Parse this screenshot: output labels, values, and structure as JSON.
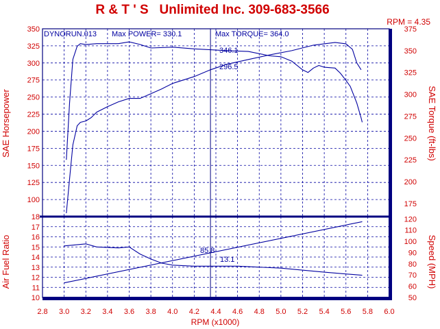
{
  "header": {
    "title": "R & T ' S   Unlimited Inc. 309-683-3566",
    "rpm_readout": "RPM = 4.35"
  },
  "upper_panel": {
    "run_label": "DYNORUN.013",
    "max_power_label": "Max POWER= 330.1",
    "max_torque_label": "Max TORQUE= 364.0",
    "cursor_hp_value": "296.5",
    "cursor_torque_value": "346.1",
    "left_axis_label": "SAE Horsepower",
    "right_axis_label": "SAE Torque (ft-lbs)"
  },
  "lower_panel": {
    "cursor_speed_value": "85.8",
    "cursor_afr_value": "13.1",
    "left_axis_label": "Air Fuel Ratio",
    "right_axis_label": "Speed (MPH)"
  },
  "x_axis": {
    "label": "RPM (x1000)",
    "ticks": [
      "2.8",
      "3.0",
      "3.2",
      "3.4",
      "3.6",
      "3.8",
      "4.0",
      "4.2",
      "4.4",
      "4.6",
      "4.8",
      "5.0",
      "5.2",
      "5.4",
      "5.6",
      "5.8",
      "6.0"
    ],
    "range": [
      2.8,
      6.0
    ],
    "cursor_rpm": 4.35
  },
  "colors": {
    "title": "#d00000",
    "axis_text": "#d00000",
    "curves": "#0000a0",
    "grid": "#0000a0",
    "frame": "#000080"
  },
  "chart_data": [
    {
      "type": "line",
      "panel": "upper",
      "grid": true,
      "left_axis": {
        "title": "SAE Horsepower",
        "ticks": [
          "100",
          "125",
          "150",
          "175",
          "200",
          "225",
          "250",
          "275",
          "300",
          "325",
          "350"
        ],
        "range": [
          75,
          350
        ]
      },
      "right_axis": {
        "title": "SAE Torque (ft-lbs)",
        "ticks": [
          "175",
          "200",
          "225",
          "250",
          "275",
          "300",
          "325",
          "350",
          "375"
        ],
        "range": [
          160,
          375
        ]
      },
      "series": [
        {
          "axis": "left",
          "points": [
            [
              3.02,
              80
            ],
            [
              3.05,
              130
            ],
            [
              3.08,
              180
            ],
            [
              3.12,
              208
            ],
            [
              3.15,
              213
            ],
            [
              3.2,
              215
            ],
            [
              3.25,
              220
            ],
            [
              3.3,
              228
            ],
            [
              3.4,
              236
            ],
            [
              3.5,
              243
            ],
            [
              3.6,
              248
            ],
            [
              3.7,
              248
            ],
            [
              3.8,
              255
            ],
            [
              3.9,
              262
            ],
            [
              4.0,
              270
            ],
            [
              4.2,
              280
            ],
            [
              4.35,
              290
            ],
            [
              4.5,
              298
            ],
            [
              4.7,
              305
            ],
            [
              4.9,
              312
            ],
            [
              5.1,
              318
            ],
            [
              5.2,
              322
            ],
            [
              5.3,
              326
            ],
            [
              5.4,
              328
            ],
            [
              5.5,
              330
            ],
            [
              5.6,
              328
            ],
            [
              5.66,
              320
            ],
            [
              5.7,
              300
            ],
            [
              5.74,
              290
            ]
          ]
        },
        {
          "axis": "right",
          "points": [
            [
              3.02,
              225
            ],
            [
              3.05,
              290
            ],
            [
              3.08,
              340
            ],
            [
              3.12,
              355
            ],
            [
              3.15,
              358
            ],
            [
              3.2,
              357
            ],
            [
              3.3,
              358
            ],
            [
              3.4,
              358
            ],
            [
              3.5,
              358
            ],
            [
              3.6,
              360
            ],
            [
              3.7,
              357
            ],
            [
              3.8,
              353
            ],
            [
              4.0,
              354
            ],
            [
              4.2,
              352
            ],
            [
              4.35,
              351
            ],
            [
              4.5,
              350
            ],
            [
              4.7,
              349
            ],
            [
              4.9,
              344
            ],
            [
              5.0,
              343
            ],
            [
              5.1,
              338
            ],
            [
              5.2,
              328
            ],
            [
              5.25,
              325
            ],
            [
              5.3,
              330
            ],
            [
              5.35,
              333
            ],
            [
              5.4,
              331
            ],
            [
              5.5,
              330
            ],
            [
              5.55,
              324
            ],
            [
              5.6,
              316
            ],
            [
              5.64,
              309
            ],
            [
              5.7,
              290
            ],
            [
              5.74,
              273
            ],
            [
              5.75,
              268
            ]
          ]
        }
      ]
    },
    {
      "type": "line",
      "panel": "lower",
      "grid": true,
      "left_axis": {
        "title": "Air Fuel Ratio",
        "ticks": [
          "10",
          "11",
          "12",
          "13",
          "14",
          "15",
          "16",
          "17",
          "18"
        ],
        "range": [
          10,
          18
        ]
      },
      "right_axis": {
        "title": "Speed (MPH)",
        "ticks": [
          "50",
          "60",
          "70",
          "80",
          "90",
          "100",
          "110",
          "120"
        ],
        "range": [
          50,
          122
        ]
      },
      "series": [
        {
          "axis": "left",
          "points": [
            [
              3.0,
              15.1
            ],
            [
              3.1,
              15.2
            ],
            [
              3.2,
              15.3
            ],
            [
              3.3,
              15.0
            ],
            [
              3.5,
              14.9
            ],
            [
              3.6,
              15.0
            ],
            [
              3.7,
              14.3
            ],
            [
              3.8,
              13.8
            ],
            [
              3.9,
              13.4
            ],
            [
              4.0,
              13.2
            ],
            [
              4.2,
              13.1
            ],
            [
              4.4,
              13.1
            ],
            [
              4.6,
              13.1
            ],
            [
              5.0,
              12.9
            ],
            [
              5.4,
              12.5
            ],
            [
              5.75,
              12.2
            ]
          ]
        },
        {
          "axis": "right",
          "points": [
            [
              3.0,
              63.0
            ],
            [
              5.75,
              117.5
            ]
          ]
        }
      ]
    }
  ]
}
